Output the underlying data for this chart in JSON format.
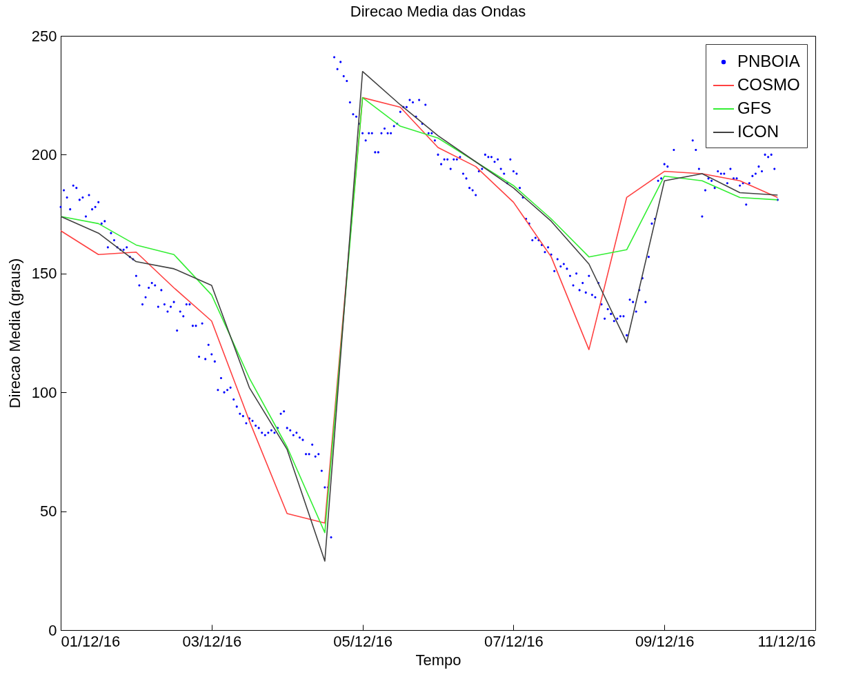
{
  "chart_data": {
    "type": "line",
    "title": "Direcao Media das Ondas",
    "xlabel": "Tempo",
    "ylabel": "Direcao Media (graus)",
    "x": [
      "--12-01T00:00",
      "--12-01T12:00",
      "--12-02T00:00",
      "--12-02T12:00",
      "--12-03T00:00",
      "--12-03T12:00",
      "--12-04T00:00",
      "--12-04T12:00",
      "--12-05T00:00",
      "--12-05T12:00",
      "--12-06T00:00",
      "--12-06T12:00",
      "--12-07T00:00",
      "--12-07T12:00",
      "--12-08T00:00",
      "--12-08T12:00",
      "--12-09T00:00",
      "--12-09T12:00",
      "--12-10T00:00",
      "--12-10T12:00"
    ],
    "xlim": [
      "--12-01",
      "--12-11"
    ],
    "xticks": [
      {
        "value": "--12-01",
        "label": "01/12/16"
      },
      {
        "value": "--12-03",
        "label": "03/12/16"
      },
      {
        "value": "--12-05",
        "label": "05/12/16"
      },
      {
        "value": "--12-07",
        "label": "07/12/16"
      },
      {
        "value": "--12-09",
        "label": "09/12/16"
      },
      {
        "value": "--12-11",
        "label": "11/12/16"
      }
    ],
    "ylim": [
      0,
      250
    ],
    "yticks": [
      0,
      50,
      100,
      150,
      200,
      250
    ],
    "grid": false,
    "legend": "top right",
    "marker": "none",
    "line_style": "solid",
    "series": [
      {
        "name": "PNBOIA",
        "type": "scatter",
        "marker": "circle",
        "color": "#0000ff",
        "x": [
          "--12-01T00:00",
          "--12-01T01:00",
          "--12-01T02:00",
          "--12-01T03:00",
          "--12-01T04:00",
          "--12-01T05:00",
          "--12-01T06:00",
          "--12-01T07:00",
          "--12-01T08:00",
          "--12-01T09:00",
          "--12-01T10:00",
          "--12-01T11:00",
          "--12-01T12:00",
          "--12-01T13:00",
          "--12-01T14:00",
          "--12-01T15:00",
          "--12-01T16:00",
          "--12-01T17:00",
          "--12-01T18:00",
          "--12-01T19:00",
          "--12-01T20:00",
          "--12-01T21:00",
          "--12-01T22:00",
          "--12-01T23:00",
          "--12-02T00:00",
          "--12-02T01:00",
          "--12-02T02:00",
          "--12-02T03:00",
          "--12-02T04:00",
          "--12-02T05:00",
          "--12-02T06:00",
          "--12-02T07:00",
          "--12-02T08:00",
          "--12-02T09:00",
          "--12-02T10:00",
          "--12-02T11:00",
          "--12-02T12:00",
          "--12-02T13:00",
          "--12-02T14:00",
          "--12-02T15:00",
          "--12-02T16:00",
          "--12-02T17:00",
          "--12-02T18:00",
          "--12-02T19:00",
          "--12-02T20:00",
          "--12-02T21:00",
          "--12-02T22:00",
          "--12-02T23:00",
          "--12-03T00:00",
          "--12-03T01:00",
          "--12-03T02:00",
          "--12-03T03:00",
          "--12-03T04:00",
          "--12-03T05:00",
          "--12-03T06:00",
          "--12-03T07:00",
          "--12-03T08:00",
          "--12-03T09:00",
          "--12-03T10:00",
          "--12-03T11:00",
          "--12-03T12:00",
          "--12-03T13:00",
          "--12-03T14:00",
          "--12-03T15:00",
          "--12-03T16:00",
          "--12-03T17:00",
          "--12-03T18:00",
          "--12-03T19:00",
          "--12-03T20:00",
          "--12-03T21:00",
          "--12-03T22:00",
          "--12-03T23:00",
          "--12-04T00:00",
          "--12-04T01:00",
          "--12-04T02:00",
          "--12-04T03:00",
          "--12-04T04:00",
          "--12-04T05:00",
          "--12-04T06:00",
          "--12-04T07:00",
          "--12-04T08:00",
          "--12-04T09:00",
          "--12-04T10:00",
          "--12-04T11:00",
          "--12-04T12:00",
          "--12-04T13:00",
          "--12-04T14:00",
          "--12-04T15:00",
          "--12-04T16:00",
          "--12-04T17:00",
          "--12-04T18:00",
          "--12-04T19:00",
          "--12-04T20:00",
          "--12-04T21:00",
          "--12-04T22:00",
          "--12-04T23:00",
          "--12-05T00:00",
          "--12-05T01:00",
          "--12-05T02:00",
          "--12-05T03:00",
          "--12-05T04:00",
          "--12-05T05:00",
          "--12-05T06:00",
          "--12-05T07:00",
          "--12-05T08:00",
          "--12-05T09:00",
          "--12-05T10:00",
          "--12-05T11:00",
          "--12-05T12:00",
          "--12-05T13:00",
          "--12-05T14:00",
          "--12-05T15:00",
          "--12-05T16:00",
          "--12-05T17:00",
          "--12-05T18:00",
          "--12-05T19:00",
          "--12-05T20:00",
          "--12-05T21:00",
          "--12-05T22:00",
          "--12-05T23:00",
          "--12-06T00:00",
          "--12-06T01:00",
          "--12-06T02:00",
          "--12-06T03:00",
          "--12-06T04:00",
          "--12-06T05:00",
          "--12-06T06:00",
          "--12-06T07:00",
          "--12-06T08:00",
          "--12-06T09:00",
          "--12-06T10:00",
          "--12-06T11:00",
          "--12-06T12:00",
          "--12-06T13:00",
          "--12-06T14:00",
          "--12-06T15:00",
          "--12-06T16:00",
          "--12-06T17:00",
          "--12-06T18:00",
          "--12-06T19:00",
          "--12-06T20:00",
          "--12-06T21:00",
          "--12-06T22:00",
          "--12-06T23:00",
          "--12-07T00:00",
          "--12-07T01:00",
          "--12-07T02:00",
          "--12-07T03:00",
          "--12-07T04:00",
          "--12-07T05:00",
          "--12-07T06:00",
          "--12-07T07:00",
          "--12-07T08:00",
          "--12-07T09:00",
          "--12-07T10:00",
          "--12-07T11:00",
          "--12-07T12:00",
          "--12-07T13:00",
          "--12-07T14:00",
          "--12-07T15:00",
          "--12-07T16:00",
          "--12-07T17:00",
          "--12-07T18:00",
          "--12-07T19:00",
          "--12-07T20:00",
          "--12-07T21:00",
          "--12-07T22:00",
          "--12-07T23:00",
          "--12-08T00:00",
          "--12-08T01:00",
          "--12-08T02:00",
          "--12-08T03:00",
          "--12-08T04:00",
          "--12-08T05:00",
          "--12-08T06:00",
          "--12-08T07:00",
          "--12-08T08:00",
          "--12-08T09:00",
          "--12-08T10:00",
          "--12-08T11:00",
          "--12-08T12:00",
          "--12-08T13:00",
          "--12-08T14:00",
          "--12-08T15:00",
          "--12-08T16:00",
          "--12-08T17:00",
          "--12-08T18:00",
          "--12-08T19:00",
          "--12-08T20:00",
          "--12-08T21:00",
          "--12-08T22:00",
          "--12-08T23:00",
          "--12-09T00:00",
          "--12-09T01:00",
          "--12-09T03:00",
          "--12-09T09:00",
          "--12-09T10:00",
          "--12-09T11:00",
          "--12-09T12:00",
          "--12-09T13:00",
          "--12-09T14:00",
          "--12-09T15:00",
          "--12-09T16:00",
          "--12-09T17:00",
          "--12-09T18:00",
          "--12-09T19:00",
          "--12-09T20:00",
          "--12-09T21:00",
          "--12-09T22:00",
          "--12-09T23:00",
          "--12-10T00:00",
          "--12-10T01:00",
          "--12-10T02:00",
          "--12-10T03:00",
          "--12-10T04:00",
          "--12-10T05:00",
          "--12-10T06:00",
          "--12-10T07:00",
          "--12-10T08:00",
          "--12-10T09:00",
          "--12-10T10:00",
          "--12-10T11:00",
          "--12-10T12:00"
        ],
        "values": [
          178,
          185,
          182,
          177,
          187,
          186,
          181,
          182,
          174,
          183,
          177,
          178,
          180,
          171,
          172,
          161,
          167,
          164,
          161,
          160,
          160,
          161,
          157,
          156,
          149,
          145,
          137,
          140,
          144,
          146,
          145,
          136,
          143,
          137,
          134,
          136,
          138,
          126,
          134,
          132,
          137,
          137,
          128,
          128,
          115,
          129,
          114,
          120,
          116,
          113,
          101,
          106,
          100,
          101,
          102,
          97,
          94,
          91,
          90,
          87,
          89,
          88,
          86,
          85,
          83,
          82,
          83,
          84,
          83,
          85,
          91,
          92,
          85,
          84,
          82,
          83,
          81,
          80,
          74,
          74,
          78,
          73,
          74,
          67,
          60,
          60,
          39,
          241,
          236,
          239,
          233,
          231,
          222,
          217,
          216,
          213,
          209,
          206,
          209,
          209,
          201,
          201,
          209,
          211,
          209,
          209,
          212,
          213,
          218,
          220,
          220,
          223,
          222,
          216,
          223,
          213,
          221,
          209,
          209,
          206,
          200,
          196,
          198,
          198,
          194,
          198,
          198,
          199,
          192,
          190,
          186,
          185,
          183,
          193,
          194,
          200,
          199,
          199,
          197,
          198,
          194,
          192,
          188,
          198,
          193,
          192,
          186,
          182,
          173,
          171,
          164,
          165,
          164,
          162,
          159,
          161,
          158,
          151,
          156,
          153,
          154,
          152,
          149,
          145,
          150,
          143,
          146,
          142,
          149,
          141,
          140,
          146,
          137,
          131,
          135,
          133,
          130,
          131,
          132,
          132,
          124,
          139,
          138,
          134,
          143,
          148,
          138,
          157,
          171,
          173,
          189,
          190,
          196,
          195,
          202,
          206,
          202,
          194,
          174,
          185,
          190,
          189,
          186,
          193,
          192,
          192,
          188,
          194,
          190,
          190,
          187,
          188,
          179,
          188,
          191,
          192,
          195,
          193,
          200,
          199,
          200,
          194,
          181
        ]
      },
      {
        "name": "COSMO",
        "color": "#ff4040",
        "values": [
          168,
          158,
          159,
          144,
          130,
          88,
          49,
          45,
          224,
          220,
          203,
          195,
          180,
          157,
          118,
          182,
          193,
          192,
          189,
          182
        ]
      },
      {
        "name": "GFS",
        "color": "#33ee33",
        "values": [
          174,
          171,
          162,
          158,
          141,
          106,
          77,
          41,
          224,
          212,
          207,
          197,
          187,
          173,
          157,
          160,
          191,
          189,
          182,
          181
        ]
      },
      {
        "name": "ICON",
        "color": "#404040",
        "values": [
          174,
          167,
          155,
          152,
          145,
          102,
          76,
          29,
          235,
          221,
          208,
          197,
          186,
          172,
          154,
          121,
          189,
          192,
          184,
          183
        ]
      }
    ]
  }
}
